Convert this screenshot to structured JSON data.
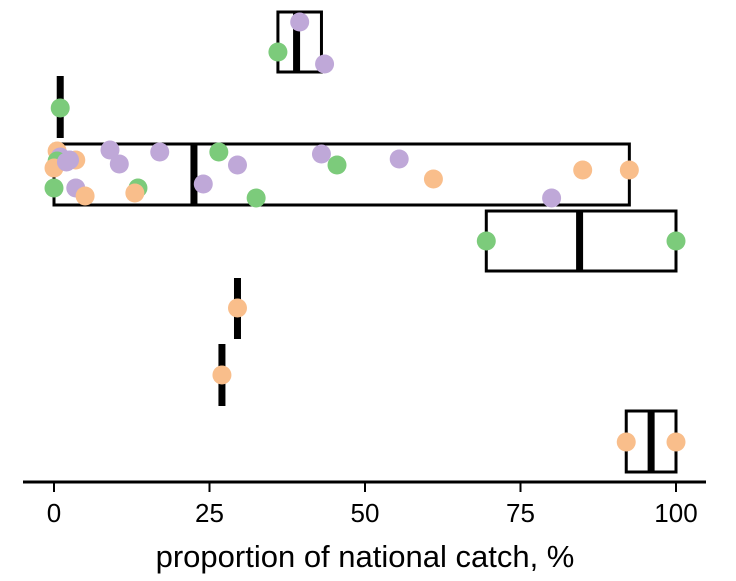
{
  "colors": {
    "orange": "#f9be8b",
    "purple": "#bfa8d8",
    "green": "#7ccb7b",
    "stroke": "#000000",
    "background": "#ffffff"
  },
  "chart_data": {
    "type": "scatter",
    "subtype": "horizontal box plots with jittered points",
    "title": "",
    "xlabel": "proportion of national catch, %",
    "ylabel": "",
    "xlim": [
      -5,
      105
    ],
    "xticks": [
      0,
      25,
      50,
      75,
      100
    ],
    "grid": false,
    "legend": "none",
    "rows": [
      {
        "box": {
          "q1": 36,
          "median": 39,
          "q3": 43
        },
        "points": [
          {
            "x": 39.5,
            "color": "purple"
          },
          {
            "x": 36,
            "color": "green"
          },
          {
            "x": 43.5,
            "color": "purple"
          }
        ]
      },
      {
        "box": {
          "q1": 1,
          "median": 1,
          "q3": 1
        },
        "points": [
          {
            "x": 1,
            "color": "green"
          }
        ]
      },
      {
        "box": {
          "q1": 0,
          "median": 22.5,
          "q3": 92.5
        },
        "points": [
          {
            "x": 0.5,
            "color": "orange"
          },
          {
            "x": 1,
            "color": "purple"
          },
          {
            "x": 3.5,
            "color": "orange"
          },
          {
            "x": 2.5,
            "color": "purple"
          },
          {
            "x": 0.5,
            "color": "green"
          },
          {
            "x": 0,
            "color": "orange"
          },
          {
            "x": 0,
            "color": "green"
          },
          {
            "x": 2,
            "color": "purple"
          },
          {
            "x": 3.5,
            "color": "purple"
          },
          {
            "x": 5,
            "color": "orange"
          },
          {
            "x": 9,
            "color": "purple"
          },
          {
            "x": 10.5,
            "color": "purple"
          },
          {
            "x": 13.5,
            "color": "green"
          },
          {
            "x": 13,
            "color": "orange"
          },
          {
            "x": 17,
            "color": "purple"
          },
          {
            "x": 24,
            "color": "purple"
          },
          {
            "x": 26.5,
            "color": "green"
          },
          {
            "x": 29.5,
            "color": "purple"
          },
          {
            "x": 32.5,
            "color": "green"
          },
          {
            "x": 43,
            "color": "purple"
          },
          {
            "x": 45.5,
            "color": "green"
          },
          {
            "x": 55.5,
            "color": "purple"
          },
          {
            "x": 61,
            "color": "orange"
          },
          {
            "x": 80,
            "color": "purple"
          },
          {
            "x": 85,
            "color": "orange"
          },
          {
            "x": 92.5,
            "color": "orange"
          }
        ]
      },
      {
        "box": {
          "q1": 69.5,
          "median": 84.5,
          "q3": 100
        },
        "points": [
          {
            "x": 69.5,
            "color": "green"
          },
          {
            "x": 100,
            "color": "green"
          }
        ]
      },
      {
        "box": {
          "q1": 29.5,
          "median": 29.5,
          "q3": 29.5
        },
        "points": [
          {
            "x": 29.5,
            "color": "orange"
          }
        ]
      },
      {
        "box": {
          "q1": 27,
          "median": 27,
          "q3": 27
        },
        "points": [
          {
            "x": 27,
            "color": "orange"
          }
        ]
      },
      {
        "box": {
          "q1": 92,
          "median": 96,
          "q3": 100
        },
        "points": [
          {
            "x": 92,
            "color": "orange"
          },
          {
            "x": 100,
            "color": "orange"
          }
        ]
      }
    ]
  }
}
